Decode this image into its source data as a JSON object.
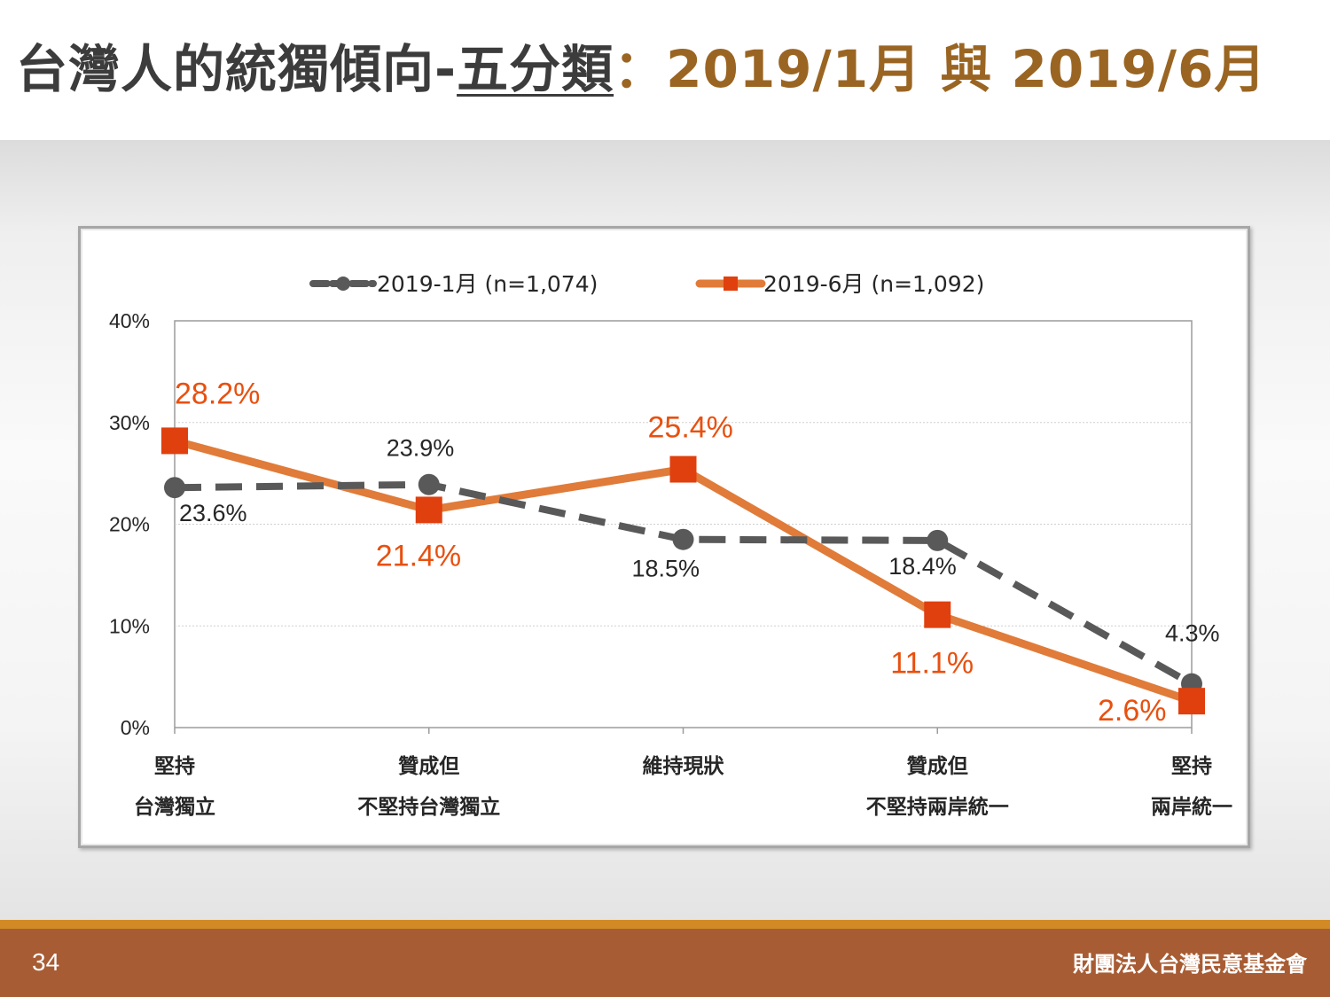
{
  "header": {
    "title_main": "台灣人的統獨傾向-",
    "title_underlined": "五分類",
    "title_colon": "：",
    "title_period": "2019/1月 與 2019/6月"
  },
  "footer": {
    "page_number": "34",
    "organization": "財團法人台灣民意基金會"
  },
  "colors": {
    "series_jan": "#595959",
    "series_jun_line": "#e07b39",
    "series_jun_marker": "#e0400e",
    "label_jun": "#e8500f",
    "title_highlight": "#9a6522",
    "footer_bar": "#a85c33",
    "footer_accent": "#d28a26"
  },
  "chart_data": {
    "type": "line",
    "title": "",
    "xlabel": "",
    "ylabel": "",
    "ylim": [
      0,
      40
    ],
    "yticks": [
      "0%",
      "10%",
      "20%",
      "30%",
      "40%"
    ],
    "grid": true,
    "legend_position": "top",
    "categories": [
      [
        "堅持",
        "台灣獨立"
      ],
      [
        "贊成但",
        "不堅持台灣獨立"
      ],
      [
        "維持現狀"
      ],
      [
        "贊成但",
        "不堅持兩岸統一"
      ],
      [
        "堅持",
        "兩岸統一"
      ]
    ],
    "series": [
      {
        "name": "2019-1月  (n=1,074)",
        "values": [
          23.6,
          23.9,
          18.5,
          18.4,
          4.3
        ],
        "labels": [
          "23.6%",
          "23.9%",
          "18.5%",
          "18.4%",
          "4.3%"
        ],
        "style": "dashed",
        "marker": "circle"
      },
      {
        "name": "2019-6月  (n=1,092)",
        "values": [
          28.2,
          21.4,
          25.4,
          11.1,
          2.6
        ],
        "labels": [
          "28.2%",
          "21.4%",
          "25.4%",
          "11.1%",
          "2.6%"
        ],
        "style": "solid",
        "marker": "square"
      }
    ]
  }
}
